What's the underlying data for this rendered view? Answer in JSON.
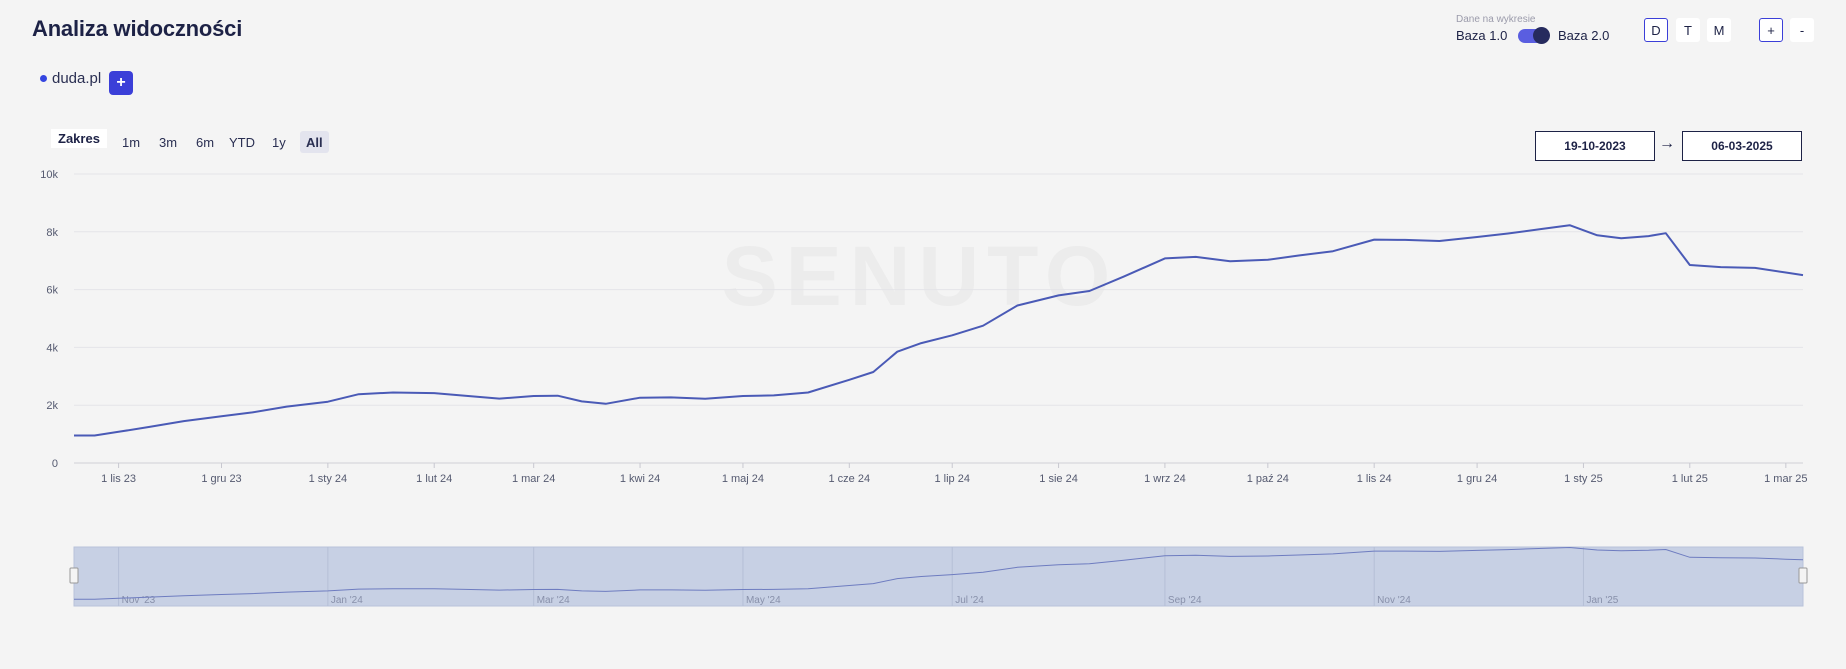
{
  "header": {
    "title": "Analiza widoczności",
    "data_source_caption": "Dane na wykresie",
    "base1_label": "Baza 1.0",
    "base2_label": "Baza 2.0",
    "base2_selected": true,
    "period_buttons": [
      "D",
      "T",
      "M"
    ],
    "active_period": "D",
    "zoom_in": "+",
    "zoom_out": "-"
  },
  "domains": {
    "items": [
      {
        "label": "duda.pl",
        "color": "#3445e0"
      }
    ],
    "add_label": "+"
  },
  "range": {
    "label": "Zakres",
    "buttons": [
      "1m",
      "3m",
      "6m",
      "YTD",
      "1y",
      "All"
    ],
    "active": "All",
    "from": "19-10-2023",
    "to": "06-03-2025",
    "arrow": "→"
  },
  "chart_data": {
    "type": "line",
    "series": [
      {
        "name": "duda.pl",
        "color": "#4a5ab6",
        "points": [
          [
            "2023-10-19",
            950
          ],
          [
            "2023-10-25",
            950
          ],
          [
            "2023-11-01",
            1080
          ],
          [
            "2023-11-10",
            1250
          ],
          [
            "2023-11-20",
            1450
          ],
          [
            "2023-12-01",
            1620
          ],
          [
            "2023-12-10",
            1750
          ],
          [
            "2023-12-20",
            1950
          ],
          [
            "2024-01-01",
            2120
          ],
          [
            "2024-01-10",
            2380
          ],
          [
            "2024-01-20",
            2440
          ],
          [
            "2024-02-01",
            2420
          ],
          [
            "2024-02-10",
            2330
          ],
          [
            "2024-02-20",
            2230
          ],
          [
            "2024-03-01",
            2320
          ],
          [
            "2024-03-08",
            2330
          ],
          [
            "2024-03-15",
            2130
          ],
          [
            "2024-03-22",
            2050
          ],
          [
            "2024-04-01",
            2260
          ],
          [
            "2024-04-10",
            2270
          ],
          [
            "2024-04-20",
            2220
          ],
          [
            "2024-05-01",
            2320
          ],
          [
            "2024-05-10",
            2340
          ],
          [
            "2024-05-20",
            2440
          ],
          [
            "2024-06-01",
            2880
          ],
          [
            "2024-06-08",
            3150
          ],
          [
            "2024-06-15",
            3850
          ],
          [
            "2024-06-22",
            4150
          ],
          [
            "2024-07-01",
            4420
          ],
          [
            "2024-07-10",
            4750
          ],
          [
            "2024-07-20",
            5450
          ],
          [
            "2024-08-01",
            5800
          ],
          [
            "2024-08-10",
            5950
          ],
          [
            "2024-08-20",
            6450
          ],
          [
            "2024-09-01",
            7080
          ],
          [
            "2024-09-10",
            7130
          ],
          [
            "2024-09-20",
            6980
          ],
          [
            "2024-10-01",
            7030
          ],
          [
            "2024-10-10",
            7180
          ],
          [
            "2024-10-20",
            7330
          ],
          [
            "2024-11-01",
            7730
          ],
          [
            "2024-11-10",
            7720
          ],
          [
            "2024-11-20",
            7680
          ],
          [
            "2024-12-01",
            7820
          ],
          [
            "2024-12-10",
            7940
          ],
          [
            "2024-12-20",
            8100
          ],
          [
            "2024-12-28",
            8230
          ],
          [
            "2025-01-05",
            7880
          ],
          [
            "2025-01-12",
            7780
          ],
          [
            "2025-01-20",
            7850
          ],
          [
            "2025-01-25",
            7950
          ],
          [
            "2025-02-01",
            6850
          ],
          [
            "2025-02-10",
            6780
          ],
          [
            "2025-02-20",
            6750
          ],
          [
            "2025-03-01",
            6590
          ],
          [
            "2025-03-06",
            6500
          ]
        ]
      }
    ],
    "xlim": [
      "2023-10-19",
      "2025-03-06"
    ],
    "ylim": [
      0,
      10000
    ],
    "yticks": [
      {
        "value": 0,
        "label": "0"
      },
      {
        "value": 2000,
        "label": "2k"
      },
      {
        "value": 4000,
        "label": "4k"
      },
      {
        "value": 6000,
        "label": "6k"
      },
      {
        "value": 8000,
        "label": "8k"
      },
      {
        "value": 10000,
        "label": "10k"
      }
    ],
    "xticks": [
      {
        "date": "2023-11-01",
        "label": "1 lis 23"
      },
      {
        "date": "2023-12-01",
        "label": "1 gru 23"
      },
      {
        "date": "2024-01-01",
        "label": "1 sty 24"
      },
      {
        "date": "2024-02-01",
        "label": "1 lut 24"
      },
      {
        "date": "2024-03-01",
        "label": "1 mar 24"
      },
      {
        "date": "2024-04-01",
        "label": "1 kwi 24"
      },
      {
        "date": "2024-05-01",
        "label": "1 maj 24"
      },
      {
        "date": "2024-06-01",
        "label": "1 cze 24"
      },
      {
        "date": "2024-07-01",
        "label": "1 lip 24"
      },
      {
        "date": "2024-08-01",
        "label": "1 sie 24"
      },
      {
        "date": "2024-09-01",
        "label": "1 wrz 24"
      },
      {
        "date": "2024-10-01",
        "label": "1 paź 24"
      },
      {
        "date": "2024-11-01",
        "label": "1 lis 24"
      },
      {
        "date": "2024-12-01",
        "label": "1 gru 24"
      },
      {
        "date": "2025-01-01",
        "label": "1 sty 25"
      },
      {
        "date": "2025-02-01",
        "label": "1 lut 25"
      },
      {
        "date": "2025-03-01",
        "label": "1 mar 25"
      }
    ],
    "navigator_ticks": [
      {
        "date": "2023-11-01",
        "label": "Nov '23"
      },
      {
        "date": "2024-01-01",
        "label": "Jan '24"
      },
      {
        "date": "2024-03-01",
        "label": "Mar '24"
      },
      {
        "date": "2024-05-01",
        "label": "May '24"
      },
      {
        "date": "2024-07-01",
        "label": "Jul '24"
      },
      {
        "date": "2024-09-01",
        "label": "Sep '24"
      },
      {
        "date": "2024-11-01",
        "label": "Nov '24"
      },
      {
        "date": "2025-01-01",
        "label": "Jan '25"
      }
    ],
    "grid": true,
    "watermark": "SENUTO"
  }
}
